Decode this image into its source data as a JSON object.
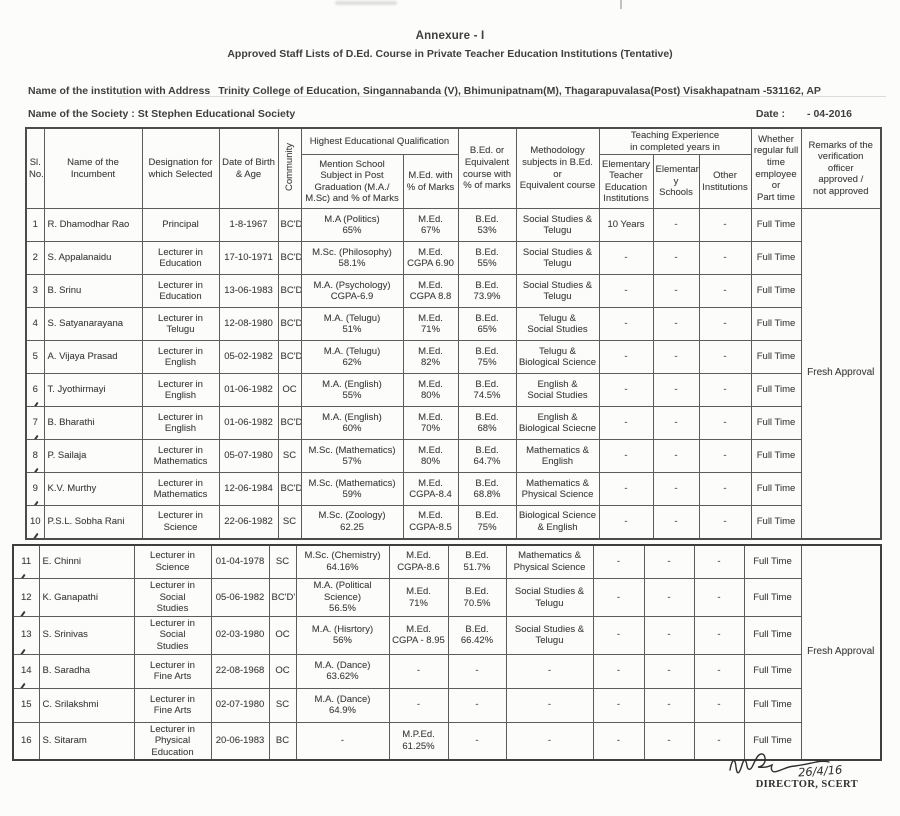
{
  "colors": {
    "ink": "#3f3f3f",
    "border": "#5c5c5c",
    "paper": "#fcfcfb"
  },
  "page": {
    "annexure": "Annexure - I",
    "title": "Approved Staff Lists of D.Ed. Course in Private Teacher Education Institutions (Tentative)",
    "institution_label": "Name of the institution with Address",
    "institution_value": "Trinity College of Education, Singannabanda (V), Bhimunipatnam(M), Thagarapuvalasa(Post) Visakhapatnam -531162, AP",
    "society_label": "Name of the Society :",
    "society_value": "St Stephen Educational Society",
    "date_label": "Date :",
    "date_value": "- 04-2016"
  },
  "table": {
    "header": {
      "sl_no": "Sl.\nNo.",
      "name": "Name of the Incumbent",
      "designation": "Designation for\nwhich Selected",
      "dob": "Date of Birth\n& Age",
      "community": "Community",
      "heq_group": "Highest Educational Qualification",
      "pg": "Mention School\nSubject in Post\nGraduation (M.A./\nM.Sc) and % of Marks",
      "med": "M.Ed. with\n% of Marks",
      "bed": "B.Ed. or\nEquivalent\ncourse with\n% of marks",
      "methodology": "Methodology\nsubjects in B.Ed. or\nEquivalent course",
      "te_group": "Teaching Experience\nin completed years in",
      "te1": "Elementary\nTeacher\nEducation\nInstitutions",
      "te2": "Elementar\ny Schools",
      "te3": "Other\nInstitutions",
      "whether": "Whether\nregular full\ntime\nemployee or\nPart time",
      "remarks": "Remarks of the\nverification\nofficer\napproved /\nnot approved"
    },
    "part1": {
      "remarks": "Fresh Approval",
      "rows": [
        {
          "sl": "1",
          "name": "R. Dhamodhar Rao",
          "designation": "Principal",
          "dob": "1-8-1967",
          "community": "BC'D'",
          "pg": "M.A (Politics)\n65%",
          "med": "M.Ed.\n67%",
          "bed": "B.Ed.\n53%",
          "methodology": "Social Studies &\nTelugu",
          "te1": "10 Years",
          "te2": "-",
          "te3": "-",
          "whether": "Full Time",
          "tick": false
        },
        {
          "sl": "2",
          "name": "S. Appalanaidu",
          "designation": "Lecturer in\nEducation",
          "dob": "17-10-1971",
          "community": "BC'D'",
          "pg": "M.Sc. (Philosophy)\n58.1%",
          "med": "M.Ed.\nCGPA 6.90",
          "bed": "B.Ed.\n55%",
          "methodology": "Social Studies &\nTelugu",
          "te1": "-",
          "te2": "-",
          "te3": "-",
          "whether": "Full Time",
          "tick": false
        },
        {
          "sl": "3",
          "name": "B. Srinu",
          "designation": "Lecturer in\nEducation",
          "dob": "13-06-1983",
          "community": "BC'D'",
          "pg": "M.A. (Psychology)\nCGPA-6.9",
          "med": "M.Ed.\nCGPA 8.8",
          "bed": "B.Ed.\n73.9%",
          "methodology": "Social Studies &\nTelugu",
          "te1": "-",
          "te2": "-",
          "te3": "-",
          "whether": "Full Time",
          "tick": false
        },
        {
          "sl": "4",
          "name": "S. Satyanarayana",
          "designation": "Lecturer in Telugu",
          "dob": "12-08-1980",
          "community": "BC'D'",
          "pg": "M.A. (Telugu)\n51%",
          "med": "M.Ed.\n71%",
          "bed": "B.Ed.\n65%",
          "methodology": "Telugu &\nSocial Studies",
          "te1": "-",
          "te2": "-",
          "te3": "-",
          "whether": "Full Time",
          "tick": false
        },
        {
          "sl": "5",
          "name": "A. Vijaya Prasad",
          "designation": "Lecturer in\nEnglish",
          "dob": "05-02-1982",
          "community": "BC'D'",
          "pg": "M.A. (Telugu)\n62%",
          "med": "M.Ed.\n82%",
          "bed": "B.Ed.\n75%",
          "methodology": "Telugu &\nBiological Science",
          "te1": "-",
          "te2": "-",
          "te3": "-",
          "whether": "Full Time",
          "tick": false
        },
        {
          "sl": "6",
          "name": "T. Jyothirmayi",
          "designation": "Lecturer in\nEnglish",
          "dob": "01-06-1982",
          "community": "OC",
          "pg": "M.A. (English)\n55%",
          "med": "M.Ed.\n80%",
          "bed": "B.Ed.\n74.5%",
          "methodology": "English &\nSocial Studies",
          "te1": "-",
          "te2": "-",
          "te3": "-",
          "whether": "Full Time",
          "tick": true
        },
        {
          "sl": "7",
          "name": "B. Bharathi",
          "designation": "Lecturer in\nEnglish",
          "dob": "01-06-1982",
          "community": "BC'D'",
          "pg": "M.A. (English)\n60%",
          "med": "M.Ed.\n70%",
          "bed": "B.Ed.\n68%",
          "methodology": "English &\nBiological Sciecne",
          "te1": "-",
          "te2": "-",
          "te3": "-",
          "whether": "Full Time",
          "tick": true
        },
        {
          "sl": "8",
          "name": "P. Sailaja",
          "designation": "Lecturer in\nMathematics",
          "dob": "05-07-1980",
          "community": "SC",
          "pg": "M.Sc. (Mathematics)\n57%",
          "med": "M.Ed.\n80%",
          "bed": "B.Ed.\n64.7%",
          "methodology": "Mathematics &\nEnglish",
          "te1": "-",
          "te2": "-",
          "te3": "-",
          "whether": "Full Time",
          "tick": true
        },
        {
          "sl": "9",
          "name": "K.V. Murthy",
          "designation": "Lecturer in\nMathematics",
          "dob": "12-06-1984",
          "community": "BC'D'",
          "pg": "M.Sc. (Mathematics)\n59%",
          "med": "M.Ed.\nCGPA-8.4",
          "bed": "B.Ed.\n68.8%",
          "methodology": "Mathematics &\nPhysical Science",
          "te1": "-",
          "te2": "-",
          "te3": "-",
          "whether": "Full Time",
          "tick": true
        },
        {
          "sl": "10",
          "name": "P.S.L. Sobha Rani",
          "designation": "Lecturer in\nScience",
          "dob": "22-06-1982",
          "community": "SC",
          "pg": "M.Sc. (Zoology)\n62.25",
          "med": "M.Ed.\nCGPA-8.5",
          "bed": "B.Ed.\n75%",
          "methodology": "Biological Science\n& English",
          "te1": "-",
          "te2": "-",
          "te3": "-",
          "whether": "Full Time",
          "tick": true
        }
      ]
    },
    "part2": {
      "remarks": "Fresh Approval",
      "rows": [
        {
          "sl": "11",
          "name": "E. Chinni",
          "designation": "Lecturer in\nScience",
          "dob": "01-04-1978",
          "community": "SC",
          "pg": "M.Sc. (Chemistry)\n64.16%",
          "med": "M.Ed.\nCGPA-8.6",
          "bed": "B.Ed.\n51.7%",
          "methodology": "Mathematics &\nPhysical Science",
          "te1": "-",
          "te2": "-",
          "te3": "-",
          "whether": "Full Time",
          "tick": true
        },
        {
          "sl": "12",
          "name": "K. Ganapathi",
          "designation": "Lecturer in Social\nStudies",
          "dob": "05-06-1982",
          "community": "BC'D'",
          "pg": "M.A. (Political\nScience)\n56.5%",
          "med": "M.Ed.\n71%",
          "bed": "B.Ed.\n70.5%",
          "methodology": "Social Studies &\nTelugu",
          "te1": "-",
          "te2": "-",
          "te3": "-",
          "whether": "Full Time",
          "tick": true
        },
        {
          "sl": "13",
          "name": "S. Srinivas",
          "designation": "Lecturer in Social\nStudies",
          "dob": "02-03-1980",
          "community": "OC",
          "pg": "M.A. (Hisrtory)\n56%",
          "med": "M.Ed.\nCGPA - 8.95",
          "bed": "B.Ed.\n66.42%",
          "methodology": "Social Studies &\nTelugu",
          "te1": "-",
          "te2": "-",
          "te3": "-",
          "whether": "Full Time",
          "tick": true
        },
        {
          "sl": "14",
          "name": "B. Saradha",
          "designation": "Lecturer in\nFine Arts",
          "dob": "22-08-1968",
          "community": "OC",
          "pg": "M.A. (Dance)\n63.62%",
          "med": "-",
          "bed": "-",
          "methodology": "-",
          "te1": "-",
          "te2": "-",
          "te3": "-",
          "whether": "Full Time",
          "tick": true
        },
        {
          "sl": "15",
          "name": "C. Srilakshmi",
          "designation": "Lecturer in\nFine Arts",
          "dob": "02-07-1980",
          "community": "SC",
          "pg": "M.A. (Dance)\n64.9%",
          "med": "-",
          "bed": "-",
          "methodology": "-",
          "te1": "-",
          "te2": "-",
          "te3": "-",
          "whether": "Full Time",
          "tick": false
        },
        {
          "sl": "16",
          "name": "S. Sitaram",
          "designation": "Lecturer in\nPhysical\nEducation",
          "dob": "20-06-1983",
          "community": "BC",
          "pg": "-",
          "med": "M.P.Ed.\n61.25%",
          "bed": "-",
          "methodology": "-",
          "te1": "-",
          "te2": "-",
          "te3": "-",
          "whether": "Full Time",
          "tick": false
        }
      ]
    }
  },
  "footer": {
    "signature_date": "26/4/16",
    "signatory": "DIRECTOR, SCERT"
  }
}
